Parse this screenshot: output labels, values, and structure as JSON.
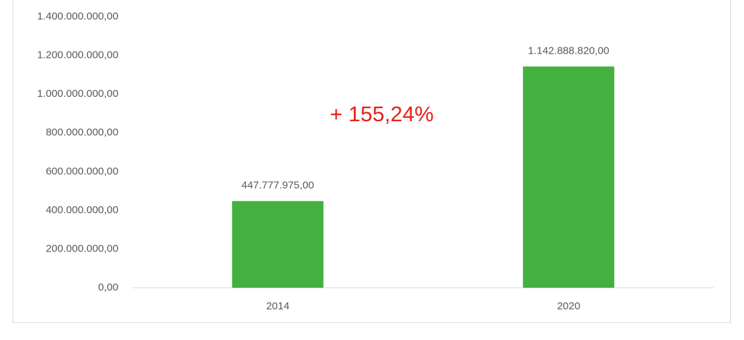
{
  "chart_data": {
    "type": "bar",
    "annotation": "+ 155,24%",
    "categories": [
      "2014",
      "2020"
    ],
    "values": [
      447777975,
      1142888820
    ],
    "value_labels": [
      "447.777.975,00",
      "1.142.888.820,00"
    ],
    "color": "#43b03f",
    "ylim": [
      0,
      1400000000
    ],
    "yticks": [
      {
        "value": 0,
        "label": "0,00"
      },
      {
        "value": 200000000,
        "label": "200.000.000,00"
      },
      {
        "value": 400000000,
        "label": "400.000.000,00"
      },
      {
        "value": 600000000,
        "label": "600.000.000,00"
      },
      {
        "value": 800000000,
        "label": "800.000.000,00"
      },
      {
        "value": 1000000000,
        "label": "1.000.000.000,00"
      },
      {
        "value": 1200000000,
        "label": "1.200.000.000,00"
      },
      {
        "value": 1400000000,
        "label": "1.400.000.000,00"
      }
    ],
    "grid": false
  }
}
